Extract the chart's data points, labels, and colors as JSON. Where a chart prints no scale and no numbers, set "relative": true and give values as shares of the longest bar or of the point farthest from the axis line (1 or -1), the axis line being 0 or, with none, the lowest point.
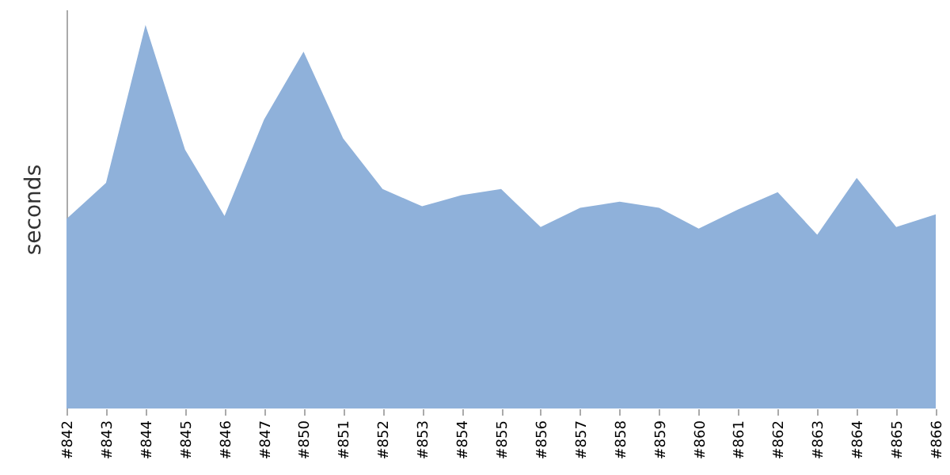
{
  "chart_data": {
    "type": "area",
    "ylabel": "seconds",
    "relative": true,
    "color": "#8fb1da",
    "categories": [
      "#842",
      "#843",
      "#844",
      "#845",
      "#846",
      "#847",
      "#850",
      "#851",
      "#852",
      "#853",
      "#854",
      "#855",
      "#856",
      "#857",
      "#858",
      "#859",
      "#860",
      "#861",
      "#862",
      "#863",
      "#864",
      "#865",
      "#866"
    ],
    "values": [
      0.494,
      0.588,
      1,
      0.675,
      0.502,
      0.753,
      0.93,
      0.704,
      0.572,
      0.527,
      0.556,
      0.572,
      0.473,
      0.523,
      0.539,
      0.523,
      0.469,
      0.519,
      0.564,
      0.453,
      0.601,
      0.473,
      0.506
    ]
  }
}
